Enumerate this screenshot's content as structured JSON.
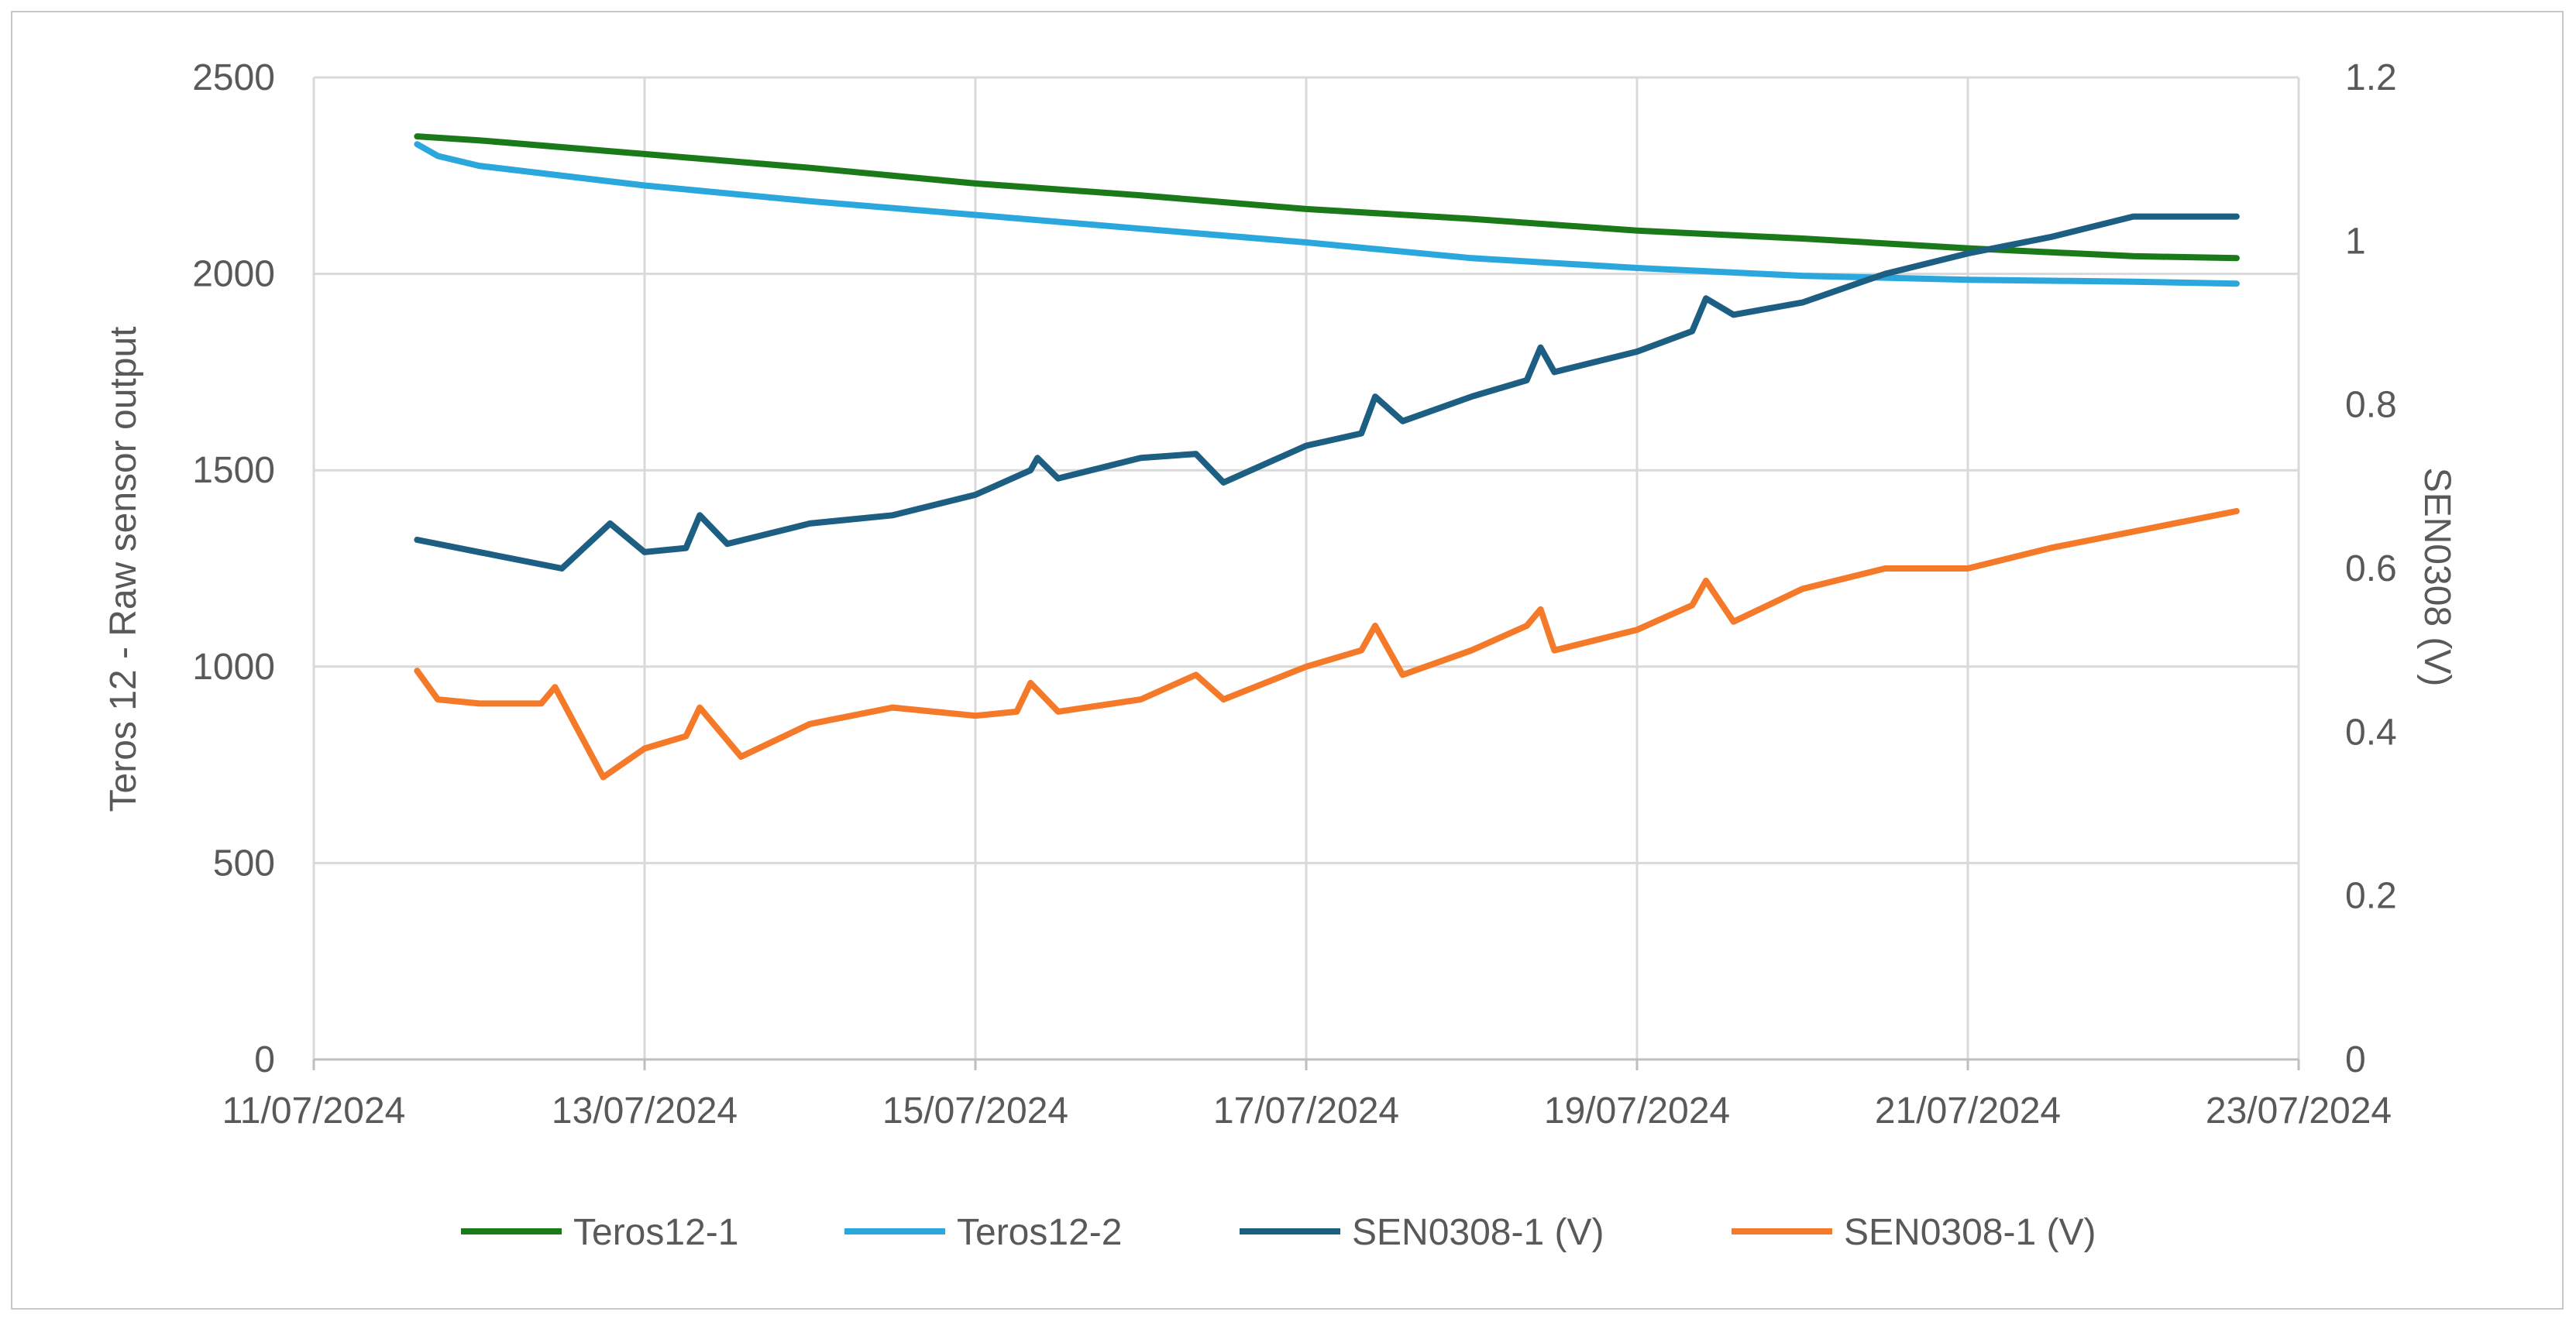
{
  "chart_data": {
    "type": "line",
    "title": "",
    "xlabel": "",
    "ylabel": "Teros 12 - Raw sensor output",
    "y2label": "SEN0308 (V)",
    "x_tick_labels": [
      "11/07/2024",
      "13/07/2024",
      "15/07/2024",
      "17/07/2024",
      "19/07/2024",
      "21/07/2024",
      "23/07/2024"
    ],
    "x_tick_dates": [
      "2024-07-11",
      "2024-07-13",
      "2024-07-15",
      "2024-07-17",
      "2024-07-19",
      "2024-07-21",
      "2024-07-23"
    ],
    "xlim": [
      "2024-07-11",
      "2024-07-23"
    ],
    "y_ticks": [
      "0",
      "500",
      "1000",
      "1500",
      "2000",
      "2500"
    ],
    "ylim": [
      0,
      2500
    ],
    "y2_ticks": [
      "0",
      "0.2",
      "0.4",
      "0.6",
      "0.8",
      "1",
      "1.2"
    ],
    "y2lim": [
      0,
      1.2
    ],
    "grid": true,
    "legend_position": "bottom",
    "series": [
      {
        "name": "Teros12-1",
        "axis": "left",
        "color": "#1a7a1a",
        "x": [
          "2024-07-11T15:00",
          "2024-07-12T00:00",
          "2024-07-13T00:00",
          "2024-07-14T00:00",
          "2024-07-15T00:00",
          "2024-07-16T00:00",
          "2024-07-17T00:00",
          "2024-07-18T00:00",
          "2024-07-19T00:00",
          "2024-07-20T00:00",
          "2024-07-21T00:00",
          "2024-07-22T00:00",
          "2024-07-22T15:00"
        ],
        "values": [
          2350,
          2340,
          2305,
          2270,
          2230,
          2200,
          2165,
          2140,
          2110,
          2090,
          2065,
          2045,
          2040
        ]
      },
      {
        "name": "Teros12-2",
        "axis": "left",
        "color": "#2aa7dd",
        "x": [
          "2024-07-11T15:00",
          "2024-07-11T18:00",
          "2024-07-12T00:00",
          "2024-07-13T00:00",
          "2024-07-14T00:00",
          "2024-07-15T00:00",
          "2024-07-16T00:00",
          "2024-07-17T00:00",
          "2024-07-18T00:00",
          "2024-07-19T00:00",
          "2024-07-20T00:00",
          "2024-07-21T00:00",
          "2024-07-22T00:00",
          "2024-07-22T15:00"
        ],
        "values": [
          2330,
          2300,
          2275,
          2225,
          2185,
          2150,
          2115,
          2080,
          2040,
          2015,
          1995,
          1985,
          1980,
          1975
        ]
      },
      {
        "name": "SEN0308-1 (V)",
        "axis": "right",
        "color": "#1d5f82",
        "x": [
          "2024-07-11T15:00",
          "2024-07-12T00:00",
          "2024-07-12T12:00",
          "2024-07-12T19:00",
          "2024-07-13T00:00",
          "2024-07-13T06:00",
          "2024-07-13T08:00",
          "2024-07-13T12:00",
          "2024-07-14T00:00",
          "2024-07-14T12:00",
          "2024-07-15T00:00",
          "2024-07-15T08:00",
          "2024-07-15T09:00",
          "2024-07-15T12:00",
          "2024-07-16T00:00",
          "2024-07-16T08:00",
          "2024-07-16T12:00",
          "2024-07-17T00:00",
          "2024-07-17T08:00",
          "2024-07-17T10:00",
          "2024-07-17T14:00",
          "2024-07-18T00:00",
          "2024-07-18T08:00",
          "2024-07-18T10:00",
          "2024-07-18T12:00",
          "2024-07-19T00:00",
          "2024-07-19T08:00",
          "2024-07-19T10:00",
          "2024-07-19T14:00",
          "2024-07-20T00:00",
          "2024-07-20T12:00",
          "2024-07-21T00:00",
          "2024-07-21T12:00",
          "2024-07-22T00:00",
          "2024-07-22T15:00"
        ],
        "values": [
          0.635,
          0.62,
          0.6,
          0.655,
          0.62,
          0.625,
          0.665,
          0.63,
          0.655,
          0.665,
          0.69,
          0.72,
          0.735,
          0.71,
          0.735,
          0.74,
          0.705,
          0.75,
          0.765,
          0.81,
          0.78,
          0.81,
          0.83,
          0.87,
          0.84,
          0.865,
          0.89,
          0.93,
          0.91,
          0.925,
          0.96,
          0.985,
          1.005,
          1.03,
          1.03
        ]
      },
      {
        "name": "SEN0308-1 (V)",
        "axis": "right",
        "color": "#f47a2a",
        "x": [
          "2024-07-11T15:00",
          "2024-07-11T18:00",
          "2024-07-12T00:00",
          "2024-07-12T09:00",
          "2024-07-12T11:00",
          "2024-07-12T18:00",
          "2024-07-13T00:00",
          "2024-07-13T06:00",
          "2024-07-13T08:00",
          "2024-07-13T14:00",
          "2024-07-14T00:00",
          "2024-07-14T12:00",
          "2024-07-15T00:00",
          "2024-07-15T06:00",
          "2024-07-15T08:00",
          "2024-07-15T12:00",
          "2024-07-16T00:00",
          "2024-07-16T08:00",
          "2024-07-16T12:00",
          "2024-07-17T00:00",
          "2024-07-17T08:00",
          "2024-07-17T10:00",
          "2024-07-17T14:00",
          "2024-07-18T00:00",
          "2024-07-18T08:00",
          "2024-07-18T10:00",
          "2024-07-18T12:00",
          "2024-07-19T00:00",
          "2024-07-19T08:00",
          "2024-07-19T10:00",
          "2024-07-19T14:00",
          "2024-07-20T00:00",
          "2024-07-20T12:00",
          "2024-07-21T00:00",
          "2024-07-21T12:00",
          "2024-07-22T00:00",
          "2024-07-22T15:00"
        ],
        "values": [
          0.475,
          0.44,
          0.435,
          0.435,
          0.455,
          0.345,
          0.38,
          0.395,
          0.43,
          0.37,
          0.41,
          0.43,
          0.42,
          0.425,
          0.46,
          0.425,
          0.44,
          0.47,
          0.44,
          0.48,
          0.5,
          0.53,
          0.47,
          0.5,
          0.53,
          0.55,
          0.5,
          0.525,
          0.555,
          0.585,
          0.535,
          0.575,
          0.6,
          0.6,
          0.625,
          0.645,
          0.67
        ]
      }
    ]
  }
}
